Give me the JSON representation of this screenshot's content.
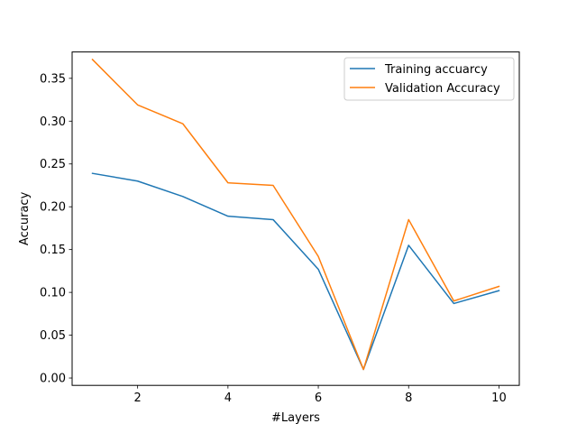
{
  "chart_data": {
    "type": "line",
    "title": "",
    "xlabel": "#Layers",
    "ylabel": "Accuracy",
    "xlim": [
      0.55,
      10.45
    ],
    "ylim": [
      -0.0086,
      0.3808
    ],
    "xticks": [
      2,
      4,
      6,
      8,
      10
    ],
    "xtick_labels": [
      "2",
      "4",
      "6",
      "8",
      "10"
    ],
    "yticks": [
      0.0,
      0.05,
      0.1,
      0.15,
      0.2,
      0.25,
      0.3,
      0.35
    ],
    "ytick_labels": [
      "0.00",
      "0.05",
      "0.10",
      "0.15",
      "0.20",
      "0.25",
      "0.30",
      "0.35"
    ],
    "grid": false,
    "legend_position": "top-right",
    "x": [
      1,
      2,
      3,
      4,
      5,
      6,
      7,
      8,
      9,
      10
    ],
    "series": [
      {
        "name": "Training accuarcy",
        "color": "#1f77b4",
        "values": [
          0.239,
          0.23,
          0.212,
          0.189,
          0.185,
          0.127,
          0.01,
          0.155,
          0.087,
          0.102
        ]
      },
      {
        "name": "Validation Accuracy",
        "color": "#ff7f0e",
        "values": [
          0.372,
          0.319,
          0.297,
          0.228,
          0.225,
          0.142,
          0.01,
          0.185,
          0.09,
          0.107
        ]
      }
    ]
  }
}
